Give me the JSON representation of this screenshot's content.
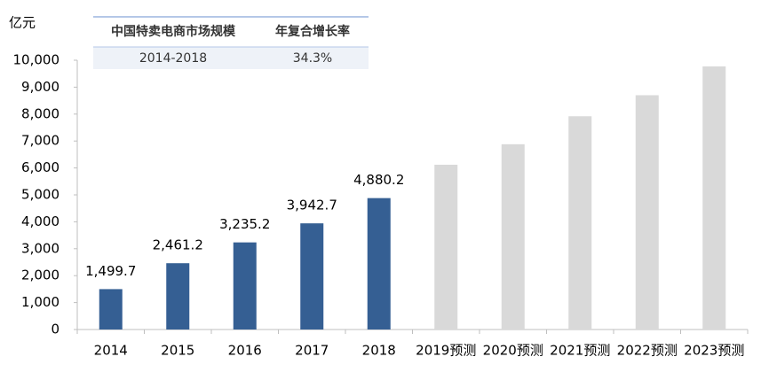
{
  "chart_data": {
    "type": "bar",
    "y_label": "亿元",
    "categories": [
      "2014",
      "2015",
      "2016",
      "2017",
      "2018",
      "2019预测",
      "2020预测",
      "2021预测",
      "2022预测",
      "2023预测"
    ],
    "values": [
      1499.7,
      2461.2,
      3235.2,
      3942.7,
      4880.2,
      6120,
      6880,
      7920,
      8700,
      9770
    ],
    "value_labels": [
      "1,499.7",
      "2,461.2",
      "3,235.2",
      "3,942.7",
      "4,880.2",
      null,
      null,
      null,
      null,
      null
    ],
    "colors": [
      "#355f93",
      "#355f93",
      "#355f93",
      "#355f93",
      "#355f93",
      "#d9d9d9",
      "#d9d9d9",
      "#d9d9d9",
      "#d9d9d9",
      "#d9d9d9"
    ],
    "ylim": [
      0,
      10000
    ],
    "yticks": [
      0,
      {
        "value": 1000,
        "label": "1,000"
      },
      {
        "value": 2000,
        "label": "2,000"
      },
      {
        "value": 3000,
        "label": "3,000"
      },
      {
        "value": 4000,
        "label": "4,000"
      },
      {
        "value": 5000,
        "label": "5,000"
      },
      {
        "value": 6000,
        "label": "6,000"
      },
      {
        "value": 7000,
        "label": "7,000"
      },
      {
        "value": 8000,
        "label": "8,000"
      },
      {
        "value": 9000,
        "label": "9,000"
      },
      {
        "value": 10000,
        "label": "10,000"
      }
    ],
    "table": {
      "header": [
        "中国特卖电商市场规模",
        "年复合增长率"
      ],
      "row": [
        "2014-2018",
        "34.3%"
      ]
    }
  }
}
